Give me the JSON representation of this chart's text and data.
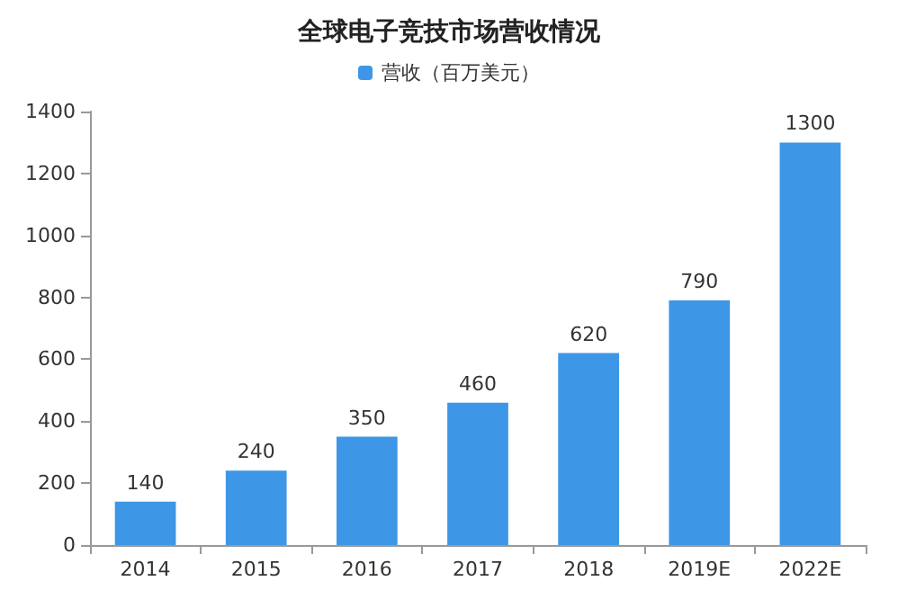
{
  "chart_data": {
    "type": "bar",
    "title": "全球电子竞技市场营收情况",
    "categories": [
      "2014",
      "2015",
      "2016",
      "2017",
      "2018",
      "2019E",
      "2022E"
    ],
    "series": [
      {
        "name": "营收（百万美元）",
        "color": "#3d97e6",
        "values": [
          140,
          240,
          350,
          460,
          620,
          790,
          1300
        ]
      }
    ],
    "ylim": [
      0,
      1400
    ],
    "yticks": [
      0,
      200,
      400,
      600,
      800,
      1000,
      1200,
      1400
    ],
    "grid": false,
    "legend": "top",
    "data_labels": true
  }
}
